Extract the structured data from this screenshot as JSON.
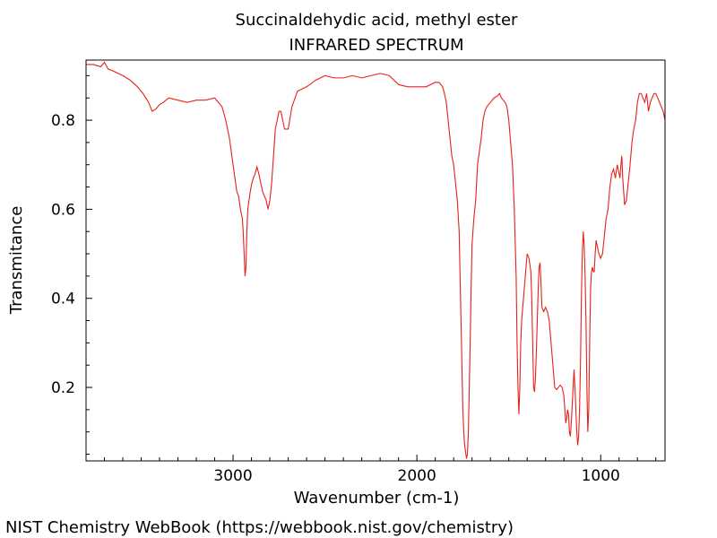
{
  "chart_data": {
    "type": "line",
    "title": "Succinaldehydic acid, methyl ester",
    "subtitle": "INFRARED SPECTRUM",
    "xlabel": "Wavenumber (cm-1)",
    "ylabel": "Transmitance",
    "xlim": [
      3800,
      650
    ],
    "ylim": [
      0.035,
      0.935
    ],
    "x_ticks": [
      3000,
      2000,
      1000
    ],
    "x_tick_labels": [
      "3000",
      "2000",
      "1000"
    ],
    "y_ticks": [
      0.2,
      0.4,
      0.6,
      0.8
    ],
    "y_tick_labels": [
      "0.2",
      "0.4",
      "0.6",
      "0.8"
    ],
    "grid": false,
    "series": [
      {
        "color": "#e8201a",
        "x": [
          3800,
          3760,
          3720,
          3700,
          3680,
          3650,
          3600,
          3560,
          3520,
          3490,
          3460,
          3440,
          3420,
          3400,
          3380,
          3350,
          3300,
          3250,
          3200,
          3150,
          3100,
          3080,
          3060,
          3040,
          3020,
          3010,
          3000,
          2990,
          2980,
          2970,
          2960,
          2950,
          2945,
          2940,
          2935,
          2930,
          2925,
          2920,
          2910,
          2900,
          2890,
          2880,
          2870,
          2860,
          2850,
          2840,
          2830,
          2820,
          2810,
          2800,
          2790,
          2780,
          2770,
          2760,
          2750,
          2740,
          2730,
          2720,
          2700,
          2680,
          2650,
          2600,
          2550,
          2500,
          2450,
          2400,
          2350,
          2300,
          2250,
          2200,
          2150,
          2100,
          2050,
          2000,
          1950,
          1900,
          1880,
          1860,
          1850,
          1840,
          1830,
          1820,
          1810,
          1800,
          1790,
          1780,
          1770,
          1765,
          1760,
          1755,
          1750,
          1745,
          1740,
          1735,
          1730,
          1725,
          1720,
          1715,
          1710,
          1705,
          1700,
          1690,
          1680,
          1670,
          1660,
          1650,
          1640,
          1630,
          1620,
          1600,
          1580,
          1560,
          1550,
          1540,
          1530,
          1520,
          1510,
          1500,
          1490,
          1480,
          1470,
          1460,
          1455,
          1450,
          1445,
          1440,
          1435,
          1430,
          1420,
          1410,
          1400,
          1390,
          1380,
          1375,
          1370,
          1365,
          1360,
          1355,
          1350,
          1345,
          1340,
          1335,
          1330,
          1325,
          1320,
          1310,
          1300,
          1290,
          1280,
          1270,
          1260,
          1250,
          1240,
          1230,
          1220,
          1210,
          1200,
          1195,
          1190,
          1185,
          1180,
          1175,
          1170,
          1165,
          1160,
          1155,
          1150,
          1145,
          1140,
          1135,
          1130,
          1125,
          1120,
          1115,
          1110,
          1105,
          1100,
          1095,
          1090,
          1085,
          1080,
          1075,
          1070,
          1065,
          1060,
          1055,
          1050,
          1045,
          1040,
          1035,
          1030,
          1025,
          1020,
          1010,
          1000,
          990,
          980,
          970,
          960,
          950,
          940,
          930,
          920,
          910,
          900,
          895,
          890,
          885,
          880,
          870,
          860,
          850,
          840,
          830,
          820,
          810,
          800,
          790,
          780,
          770,
          760,
          750,
          740,
          730,
          720,
          710,
          700,
          690,
          680,
          670,
          660,
          650
        ],
        "y": [
          0.925,
          0.925,
          0.92,
          0.93,
          0.915,
          0.91,
          0.9,
          0.89,
          0.875,
          0.86,
          0.84,
          0.82,
          0.825,
          0.835,
          0.84,
          0.85,
          0.845,
          0.84,
          0.845,
          0.845,
          0.85,
          0.84,
          0.83,
          0.8,
          0.76,
          0.73,
          0.7,
          0.67,
          0.64,
          0.63,
          0.6,
          0.58,
          0.55,
          0.5,
          0.45,
          0.47,
          0.55,
          0.6,
          0.63,
          0.655,
          0.67,
          0.68,
          0.695,
          0.68,
          0.66,
          0.64,
          0.63,
          0.62,
          0.6,
          0.62,
          0.66,
          0.72,
          0.78,
          0.8,
          0.82,
          0.82,
          0.8,
          0.78,
          0.78,
          0.83,
          0.865,
          0.875,
          0.89,
          0.9,
          0.895,
          0.895,
          0.9,
          0.895,
          0.9,
          0.905,
          0.9,
          0.88,
          0.875,
          0.875,
          0.875,
          0.885,
          0.885,
          0.875,
          0.86,
          0.84,
          0.8,
          0.76,
          0.72,
          0.7,
          0.66,
          0.62,
          0.55,
          0.45,
          0.35,
          0.25,
          0.15,
          0.1,
          0.07,
          0.055,
          0.04,
          0.05,
          0.1,
          0.2,
          0.3,
          0.42,
          0.52,
          0.58,
          0.62,
          0.7,
          0.73,
          0.76,
          0.8,
          0.82,
          0.83,
          0.84,
          0.85,
          0.855,
          0.86,
          0.85,
          0.845,
          0.84,
          0.83,
          0.8,
          0.75,
          0.7,
          0.6,
          0.45,
          0.3,
          0.2,
          0.14,
          0.2,
          0.3,
          0.35,
          0.4,
          0.45,
          0.5,
          0.49,
          0.46,
          0.4,
          0.3,
          0.2,
          0.19,
          0.22,
          0.28,
          0.35,
          0.42,
          0.47,
          0.48,
          0.44,
          0.38,
          0.37,
          0.38,
          0.37,
          0.35,
          0.3,
          0.25,
          0.2,
          0.195,
          0.2,
          0.205,
          0.2,
          0.18,
          0.15,
          0.12,
          0.13,
          0.15,
          0.14,
          0.1,
          0.09,
          0.12,
          0.16,
          0.2,
          0.24,
          0.2,
          0.15,
          0.1,
          0.07,
          0.09,
          0.15,
          0.25,
          0.4,
          0.5,
          0.55,
          0.52,
          0.45,
          0.35,
          0.2,
          0.1,
          0.15,
          0.3,
          0.42,
          0.46,
          0.47,
          0.46,
          0.46,
          0.5,
          0.53,
          0.52,
          0.5,
          0.49,
          0.5,
          0.54,
          0.58,
          0.6,
          0.65,
          0.68,
          0.69,
          0.67,
          0.7,
          0.68,
          0.67,
          0.7,
          0.72,
          0.67,
          0.61,
          0.62,
          0.66,
          0.7,
          0.75,
          0.78,
          0.8,
          0.84,
          0.86,
          0.86,
          0.85,
          0.84,
          0.86,
          0.82,
          0.84,
          0.85,
          0.86,
          0.86,
          0.85,
          0.84,
          0.83,
          0.82,
          0.8
        ]
      }
    ]
  },
  "footer": "NIST Chemistry WebBook (https://webbook.nist.gov/chemistry)"
}
